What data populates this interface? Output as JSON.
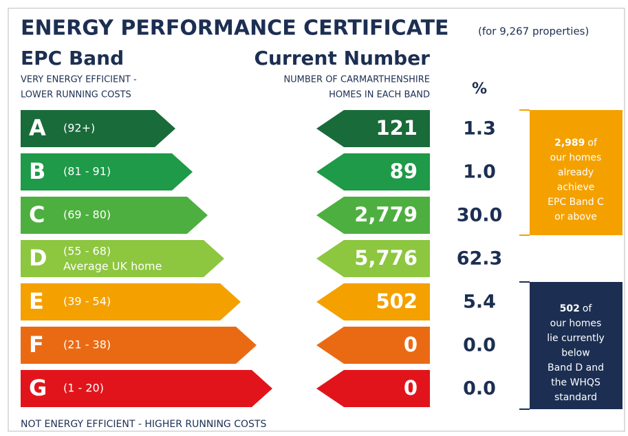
{
  "header": {
    "title": "ENERGY PERFORMANCE CERTIFICATE",
    "subtitle": "(for 9,267 properties)"
  },
  "columns": {
    "band": "EPC Band",
    "band_note": [
      "VERY ENERGY EFFICIENT -",
      "LOWER RUNNING COSTS"
    ],
    "number": "Current Number",
    "number_note": [
      "NUMBER OF CARMARTHENSHIRE",
      "HOMES IN EACH BAND"
    ],
    "percent": "%"
  },
  "bands": [
    {
      "letter": "A",
      "range": "(92+)",
      "count": "121",
      "percent": "1.3",
      "color": "#1a6b3a"
    },
    {
      "letter": "B",
      "range": "(81 - 91)",
      "count": "89",
      "percent": "1.0",
      "color": "#1e9a48"
    },
    {
      "letter": "C",
      "range": "(69 - 80)",
      "count": "2,779",
      "percent": "30.0",
      "color": "#4daf3f"
    },
    {
      "letter": "D",
      "range": "(55 - 68)",
      "note": "Average UK home",
      "count": "5,776",
      "percent": "62.3",
      "color": "#8dc63f"
    },
    {
      "letter": "E",
      "range": "(39 - 54)",
      "count": "502",
      "percent": "5.4",
      "color": "#f4a100"
    },
    {
      "letter": "F",
      "range": "(21 - 38)",
      "count": "0",
      "percent": "0.0",
      "color": "#ea6a14"
    },
    {
      "letter": "G",
      "range": "(1 - 20)",
      "count": "0",
      "percent": "0.0",
      "color": "#e2141b"
    }
  ],
  "callouts": [
    {
      "number": "2,989",
      "lines": [
        "of",
        "our homes",
        "already",
        "achieve",
        "EPC Band C",
        "or above"
      ],
      "color": "#f4a100"
    },
    {
      "number": "502",
      "lines": [
        "of",
        "our homes",
        "lie currently",
        "below",
        "Band D and",
        "the WHQS",
        "standard"
      ],
      "color": "#1c2f52"
    }
  ],
  "footer": "NOT ENERGY EFFICIENT - HIGHER RUNNING COSTS"
}
